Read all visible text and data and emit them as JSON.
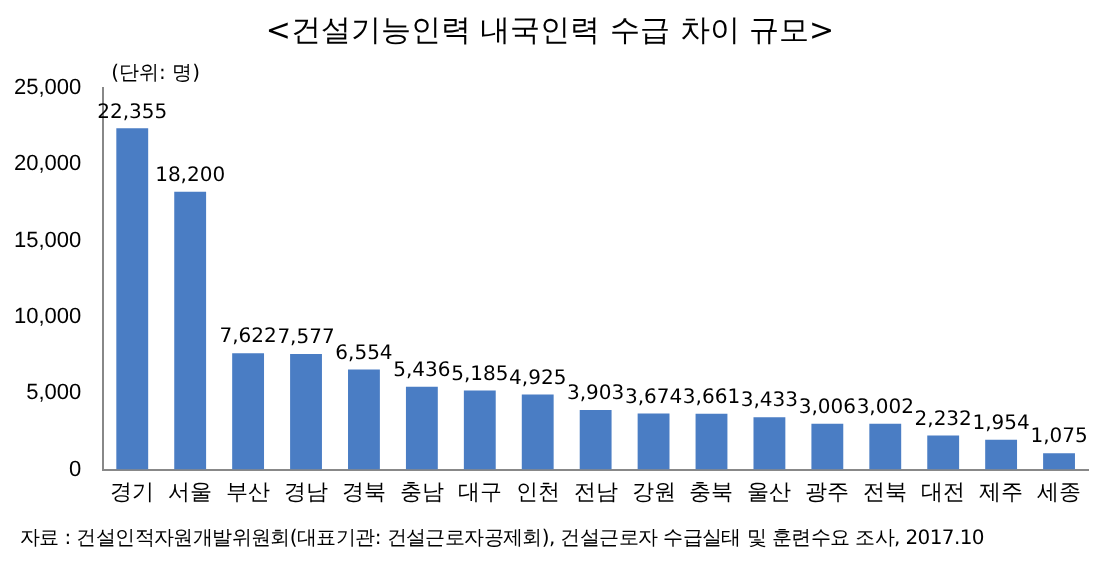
{
  "chart_data": {
    "type": "bar",
    "title": "<건설기능인력 내국인력 수급 차이 규모>",
    "ylabel": "(단위: 명)",
    "categories": [
      "경기",
      "서울",
      "부산",
      "경남",
      "경북",
      "충남",
      "대구",
      "인천",
      "전남",
      "강원",
      "충북",
      "울산",
      "광주",
      "전북",
      "대전",
      "제주",
      "세종"
    ],
    "values": [
      22355,
      18200,
      7622,
      7577,
      6554,
      5436,
      5185,
      4925,
      3903,
      3674,
      3661,
      3433,
      3006,
      3002,
      2232,
      1954,
      1075
    ],
    "value_labels": [
      "22,355",
      "18,200",
      "7,622",
      "7,577",
      "6,554",
      "5,436",
      "5,185",
      "4,925",
      "3,903",
      "3,674",
      "3,661",
      "3,433",
      "3,006",
      "3,002",
      "2,232",
      "1,954",
      "1,075"
    ],
    "color": "#4a7dc4",
    "ylim": [
      0,
      25000
    ],
    "yticks": [
      {
        "value": 0,
        "label": "0"
      },
      {
        "value": 5000,
        "label": "5,000"
      },
      {
        "value": 10000,
        "label": "10,000"
      },
      {
        "value": 15000,
        "label": "15,000"
      },
      {
        "value": 20000,
        "label": "20,000"
      },
      {
        "value": 25000,
        "label": "25,000"
      }
    ],
    "grid": false,
    "legend": false,
    "annotations": [
      "자료 : 건설인적자원개발위원회(대표기관: 건설근로자공제회), 건설근로자 수급실태 및 훈련수요 조사, 2017.10"
    ]
  }
}
